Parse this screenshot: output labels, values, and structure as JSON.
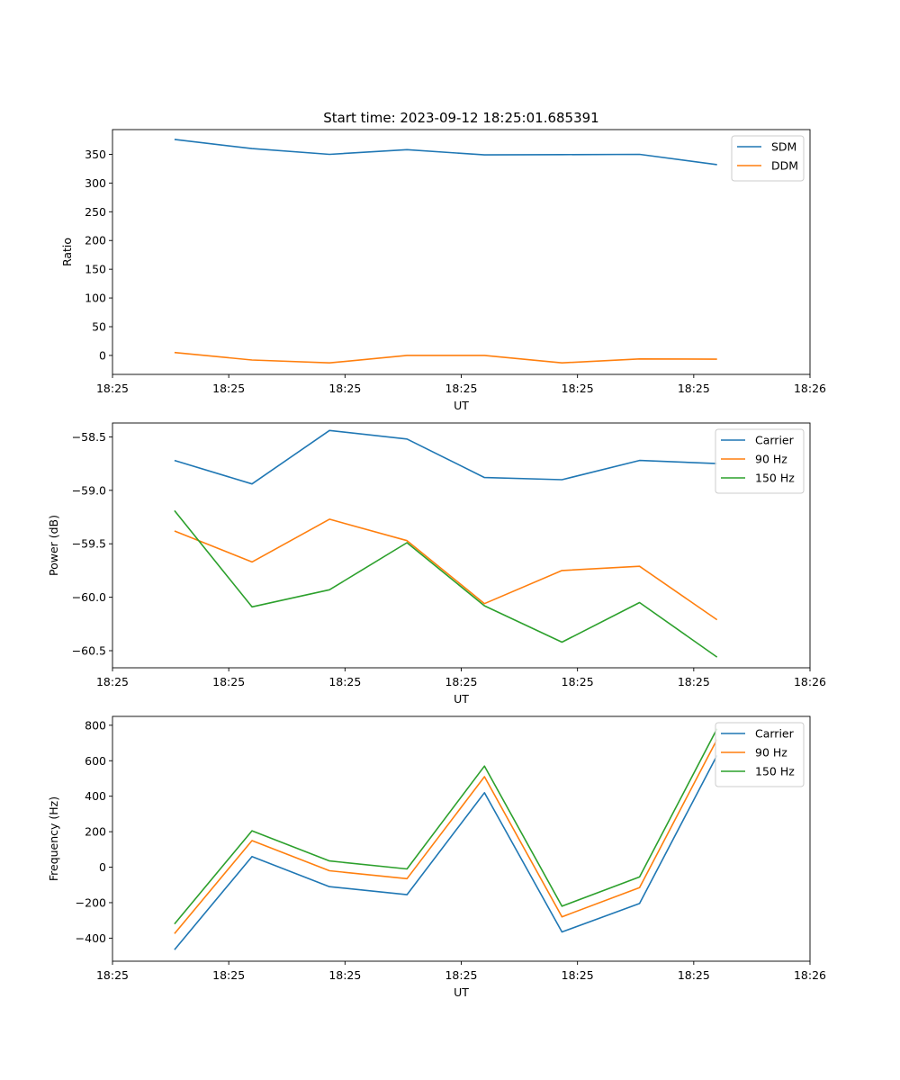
{
  "chart_data": [
    {
      "type": "line",
      "title": "Start time: 2023-09-12 18:25:01.685391",
      "xlabel": "UT",
      "ylabel": "Ratio",
      "x": [
        1,
        2,
        3,
        4,
        5,
        6,
        7,
        8
      ],
      "xlim": [
        0.2,
        9.2
      ],
      "xticks": [
        {
          "v": 0.2,
          "label": "18:25"
        },
        {
          "v": 1.7,
          "label": "18:25"
        },
        {
          "v": 3.2,
          "label": "18:25"
        },
        {
          "v": 4.7,
          "label": "18:25"
        },
        {
          "v": 6.2,
          "label": "18:25"
        },
        {
          "v": 7.7,
          "label": "18:25"
        },
        {
          "v": 9.2,
          "label": "18:26"
        }
      ],
      "ylim": [
        -33,
        393
      ],
      "yticks": [
        0,
        50,
        100,
        150,
        200,
        250,
        300,
        350
      ],
      "ytick_labels": [
        "0",
        "50",
        "100",
        "150",
        "200",
        "250",
        "300",
        "350"
      ],
      "legend_position": "top-right",
      "series": [
        {
          "name": "SDM",
          "color": "#1f77b4",
          "values": [
            376,
            360,
            350,
            358,
            349,
            349.5,
            350,
            332
          ]
        },
        {
          "name": "DDM",
          "color": "#ff7f0e",
          "values": [
            5,
            -8,
            -13,
            0,
            0,
            -13,
            -6,
            -6.5
          ]
        }
      ]
    },
    {
      "type": "line",
      "title": "",
      "xlabel": "UT",
      "ylabel": "Power (dB)",
      "x": [
        1,
        2,
        3,
        4,
        5,
        6,
        7,
        8
      ],
      "xlim": [
        0.2,
        9.2
      ],
      "xticks": [
        {
          "v": 0.2,
          "label": "18:25"
        },
        {
          "v": 1.7,
          "label": "18:25"
        },
        {
          "v": 3.2,
          "label": "18:25"
        },
        {
          "v": 4.7,
          "label": "18:25"
        },
        {
          "v": 6.2,
          "label": "18:25"
        },
        {
          "v": 7.7,
          "label": "18:25"
        },
        {
          "v": 9.2,
          "label": "18:26"
        }
      ],
      "ylim": [
        -60.66,
        -58.37
      ],
      "yticks": [
        -58.5,
        -59.0,
        -59.5,
        -60.0,
        -60.5
      ],
      "ytick_labels": [
        "−58.5",
        "−59.0",
        "−59.5",
        "−60.0",
        "−60.5"
      ],
      "legend_position": "top-right",
      "series": [
        {
          "name": "Carrier",
          "color": "#1f77b4",
          "values": [
            -58.72,
            -58.94,
            -58.44,
            -58.52,
            -58.88,
            -58.9,
            -58.72,
            -58.75
          ]
        },
        {
          "name": "90 Hz",
          "color": "#ff7f0e",
          "values": [
            -59.38,
            -59.67,
            -59.27,
            -59.47,
            -60.06,
            -59.75,
            -59.71,
            -60.21
          ]
        },
        {
          "name": "150 Hz",
          "color": "#2ca02c",
          "values": [
            -59.19,
            -60.09,
            -59.93,
            -59.49,
            -60.08,
            -60.42,
            -60.05,
            -60.56
          ]
        }
      ]
    },
    {
      "type": "line",
      "title": "",
      "xlabel": "UT",
      "ylabel": "Frequency (Hz)",
      "x": [
        1,
        2,
        3,
        4,
        5,
        6,
        7,
        8
      ],
      "xlim": [
        0.2,
        9.2
      ],
      "xticks": [
        {
          "v": 0.2,
          "label": "18:25"
        },
        {
          "v": 1.7,
          "label": "18:25"
        },
        {
          "v": 3.2,
          "label": "18:25"
        },
        {
          "v": 4.7,
          "label": "18:25"
        },
        {
          "v": 6.2,
          "label": "18:25"
        },
        {
          "v": 7.7,
          "label": "18:25"
        },
        {
          "v": 9.2,
          "label": "18:26"
        }
      ],
      "ylim": [
        -530,
        850
      ],
      "yticks": [
        -400,
        -200,
        0,
        200,
        400,
        600,
        800
      ],
      "ytick_labels": [
        "−400",
        "−200",
        "0",
        "200",
        "400",
        "600",
        "800"
      ],
      "legend_position": "top-right",
      "series": [
        {
          "name": "Carrier",
          "color": "#1f77b4",
          "values": [
            -465,
            60,
            -110,
            -155,
            420,
            -365,
            -205,
            630
          ]
        },
        {
          "name": "90 Hz",
          "color": "#ff7f0e",
          "values": [
            -375,
            150,
            -20,
            -65,
            510,
            -280,
            -115,
            720
          ]
        },
        {
          "name": "150 Hz",
          "color": "#2ca02c",
          "values": [
            -320,
            205,
            35,
            -10,
            570,
            -220,
            -55,
            780
          ]
        }
      ]
    }
  ]
}
